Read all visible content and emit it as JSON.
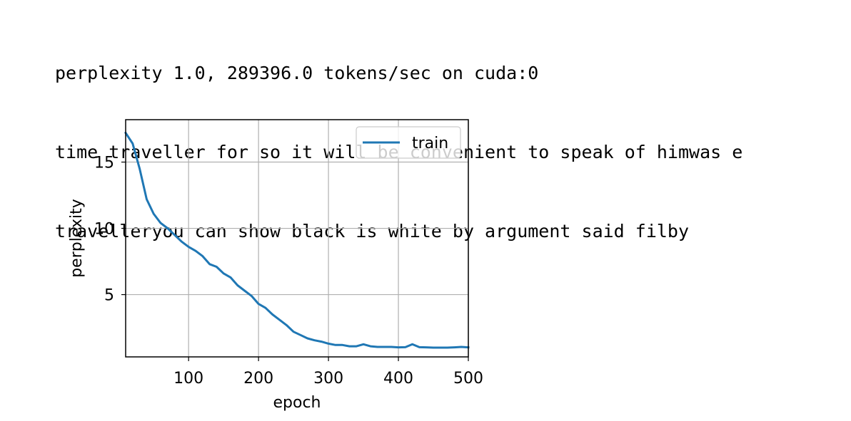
{
  "console": {
    "lines": [
      "perplexity 1.0, 289396.0 tokens/sec on cuda:0",
      "time traveller for so it will be convenient to speak of himwas e",
      "travelleryou can show black is white by argument said filby"
    ]
  },
  "chart_data": {
    "type": "line",
    "xlabel": "epoch",
    "ylabel": "perplexity",
    "xlim": [
      10,
      500
    ],
    "ylim": [
      0.3,
      18.2
    ],
    "xticks": [
      100,
      200,
      300,
      400,
      500
    ],
    "yticks": [
      5,
      10,
      15
    ],
    "grid": true,
    "legend": "top-right",
    "series": [
      {
        "name": "train",
        "color": "#1f77b4",
        "x": [
          10,
          20,
          30,
          40,
          50,
          60,
          70,
          80,
          90,
          100,
          110,
          120,
          130,
          140,
          150,
          160,
          170,
          180,
          190,
          200,
          210,
          220,
          230,
          240,
          250,
          260,
          270,
          280,
          290,
          300,
          310,
          320,
          330,
          340,
          350,
          360,
          370,
          380,
          390,
          400,
          410,
          420,
          430,
          440,
          450,
          460,
          470,
          480,
          490,
          500
        ],
        "y": [
          17.2,
          16.4,
          14.5,
          12.2,
          11.1,
          10.4,
          10.0,
          9.5,
          9.0,
          8.6,
          8.3,
          7.9,
          7.3,
          7.1,
          6.6,
          6.3,
          5.7,
          5.3,
          4.9,
          4.3,
          4.0,
          3.5,
          3.1,
          2.7,
          2.2,
          1.95,
          1.7,
          1.55,
          1.45,
          1.3,
          1.2,
          1.2,
          1.1,
          1.1,
          1.25,
          1.1,
          1.05,
          1.05,
          1.05,
          1.02,
          1.03,
          1.25,
          1.03,
          1.02,
          1.0,
          1.0,
          1.0,
          1.02,
          1.05,
          1.02
        ]
      }
    ]
  }
}
